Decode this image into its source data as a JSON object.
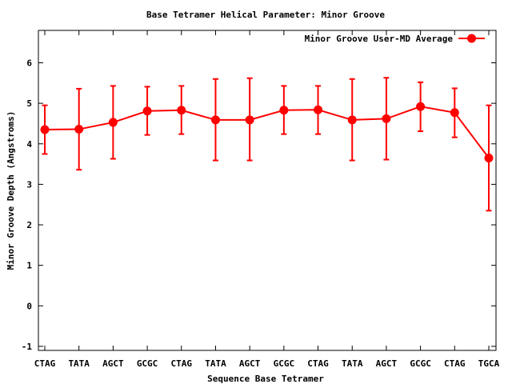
{
  "chart_data": {
    "type": "line",
    "title": "Base Tetramer Helical Parameter: Minor Groove",
    "xlabel": "Sequence Base Tetramer",
    "ylabel": "Minor Groove Depth (Angstroms)",
    "categories": [
      "CTAG",
      "TATA",
      "AGCT",
      "GCGC",
      "CTAG",
      "TATA",
      "AGCT",
      "GCGC",
      "CTAG",
      "TATA",
      "AGCT",
      "GCGC",
      "CTAG",
      "TGCA"
    ],
    "ylim": [
      -1.1,
      6.8
    ],
    "yticks": [
      -1,
      0,
      1,
      2,
      3,
      4,
      5,
      6
    ],
    "grid": false,
    "legend_position": "top-right",
    "series": [
      {
        "name": "Minor Groove User-MD Average",
        "color": "#ff0000",
        "marker": "circle",
        "values": [
          4.35,
          4.36,
          4.53,
          4.81,
          4.83,
          4.59,
          4.59,
          4.83,
          4.84,
          4.59,
          4.62,
          4.92,
          4.77,
          3.65
        ],
        "err_low": [
          3.75,
          3.36,
          3.63,
          4.22,
          4.24,
          3.59,
          3.59,
          4.24,
          4.24,
          3.59,
          3.61,
          4.31,
          4.16,
          2.35
        ],
        "err_high": [
          4.95,
          5.36,
          5.43,
          5.41,
          5.43,
          5.6,
          5.62,
          5.43,
          5.43,
          5.6,
          5.63,
          5.52,
          5.37,
          4.95
        ]
      }
    ]
  }
}
